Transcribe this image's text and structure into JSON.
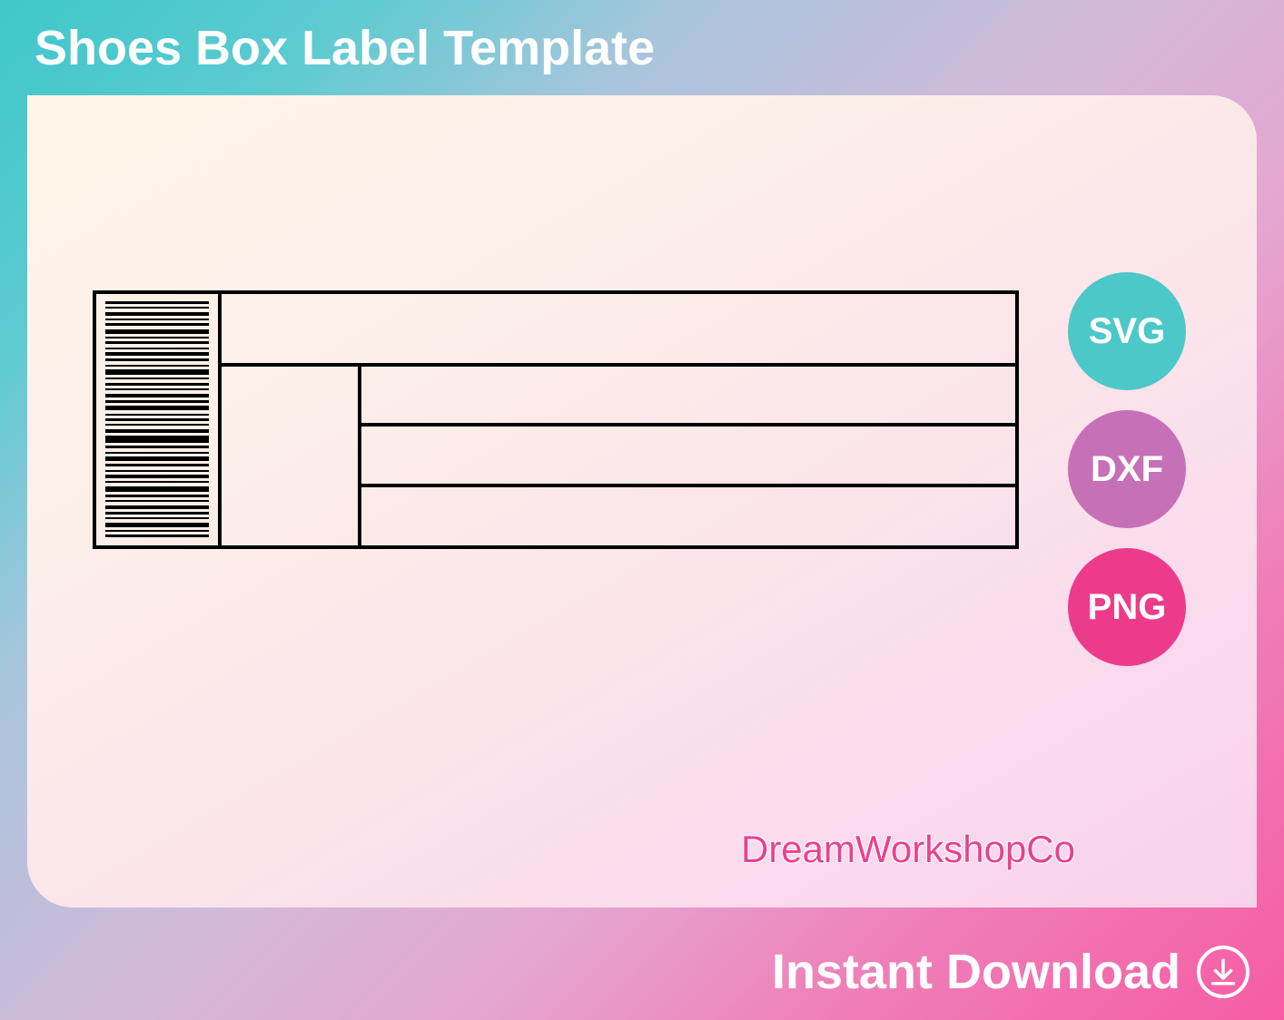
{
  "header": {
    "title": "Shoes Box Label Template"
  },
  "template": {
    "type": "label-template",
    "border_color": "#000000",
    "border_width": 4,
    "barcode": {
      "lines": [
        {
          "h": 3
        },
        {
          "h": 2
        },
        {
          "h": 4
        },
        {
          "h": 2
        },
        {
          "h": 3
        },
        {
          "h": 5
        },
        {
          "h": 2
        },
        {
          "h": 3
        },
        {
          "h": 2
        },
        {
          "h": 4
        },
        {
          "h": 3
        },
        {
          "h": 2
        },
        {
          "h": 6
        },
        {
          "h": 2
        },
        {
          "h": 3
        },
        {
          "h": 2
        },
        {
          "h": 4
        },
        {
          "h": 3
        },
        {
          "h": 5
        },
        {
          "h": 2
        },
        {
          "h": 3
        },
        {
          "h": 2
        },
        {
          "h": 4
        },
        {
          "h": 8
        },
        {
          "h": 3
        },
        {
          "h": 2
        },
        {
          "h": 5
        },
        {
          "h": 3
        },
        {
          "h": 2
        },
        {
          "h": 4
        },
        {
          "h": 2
        },
        {
          "h": 6
        },
        {
          "h": 3
        },
        {
          "h": 2
        },
        {
          "h": 4
        },
        {
          "h": 3
        },
        {
          "h": 2
        },
        {
          "h": 5
        },
        {
          "h": 2
        },
        {
          "h": 3
        }
      ]
    }
  },
  "formats": [
    {
      "label": "SVG",
      "color": "#4dc8c8"
    },
    {
      "label": "DXF",
      "color": "#c670b8"
    },
    {
      "label": "PNG",
      "color": "#ed3b8b"
    }
  ],
  "brand": {
    "name": "DreamWorkshopCo",
    "color": "#e94190"
  },
  "footer": {
    "text": "Instant Download"
  },
  "colors": {
    "gradient_start": "#3fc7ca",
    "gradient_end": "#f65ca3",
    "inner_bg_start": "#fdf5e8",
    "inner_bg_end": "#f8d2ec",
    "text_white": "#ffffff"
  }
}
